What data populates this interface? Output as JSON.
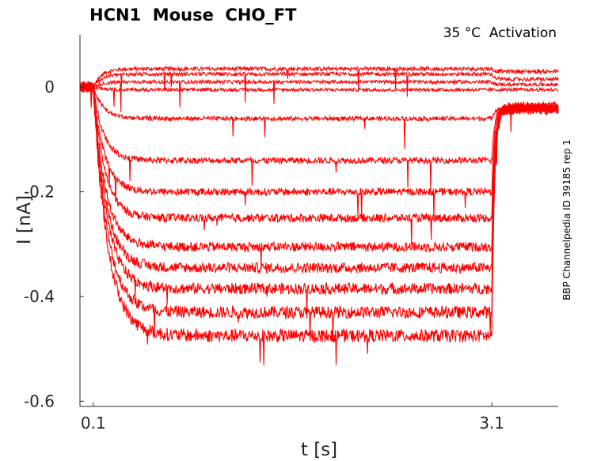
{
  "chart_data": {
    "type": "line",
    "title": "HCN1  Mouse  CHO_FT",
    "annotation": "35 °C  Activation",
    "side_label": "BBP Channelpedia ID 39185 rep 1",
    "xlabel": "t [s]",
    "ylabel": "I [nA]",
    "xlim": [
      0.0,
      3.6
    ],
    "ylim": [
      -0.61,
      0.1
    ],
    "x_ticks": [
      0.1,
      3.1
    ],
    "x_tick_labels": [
      "0.1",
      "3.1"
    ],
    "y_ticks": [
      0,
      -0.2,
      -0.4,
      -0.6
    ],
    "y_tick_labels": [
      "0",
      "-0.2",
      "-0.4",
      "-0.6"
    ],
    "grid": false,
    "line_color": "#ff0000",
    "pulse_start_s": 0.1,
    "pulse_end_s": 3.1,
    "series": [
      {
        "baseline": 0.0,
        "steady": 0.035,
        "tail": 0.03
      },
      {
        "baseline": 0.0,
        "steady": 0.025,
        "tail": 0.015
      },
      {
        "baseline": 0.0,
        "steady": 0.01,
        "tail": 0.005
      },
      {
        "baseline": 0.0,
        "steady": -0.005,
        "tail": -0.005
      },
      {
        "baseline": 0.0,
        "steady": -0.06,
        "tail": -0.04
      },
      {
        "baseline": 0.0,
        "steady": -0.14,
        "tail": -0.04
      },
      {
        "baseline": 0.0,
        "steady": -0.2,
        "tail": -0.04
      },
      {
        "baseline": 0.0,
        "steady": -0.25,
        "tail": -0.04
      },
      {
        "baseline": 0.0,
        "steady": -0.305,
        "tail": -0.04
      },
      {
        "baseline": 0.0,
        "steady": -0.345,
        "tail": -0.04
      },
      {
        "baseline": 0.0,
        "steady": -0.385,
        "tail": -0.04
      },
      {
        "baseline": 0.0,
        "steady": -0.43,
        "tail": -0.04
      },
      {
        "baseline": 0.0,
        "steady": -0.475,
        "tail": -0.04
      }
    ]
  }
}
